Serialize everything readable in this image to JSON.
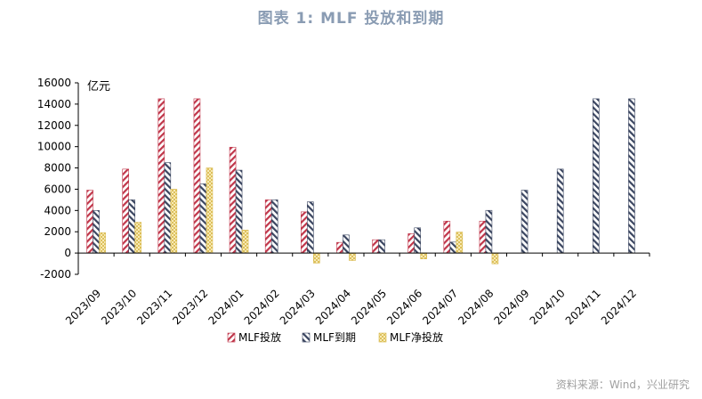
{
  "title": "图表 1:  MLF 投放和到期",
  "source": "资料来源：Wind，兴业研究",
  "chart_data": {
    "type": "bar",
    "unit_label": "亿元",
    "categories": [
      "2023/09",
      "2023/10",
      "2023/11",
      "2023/12",
      "2024/01",
      "2024/02",
      "2024/03",
      "2024/04",
      "2024/05",
      "2024/06",
      "2024/07",
      "2024/08",
      "2024/09",
      "2024/10",
      "2024/11",
      "2024/12"
    ],
    "series": [
      {
        "name": "MLF投放",
        "color": "#c0364a",
        "pattern": "diagonal-red",
        "values": [
          5910,
          7890,
          14500,
          14500,
          9950,
          5000,
          3870,
          1000,
          1250,
          1820,
          3000,
          3000,
          null,
          null,
          null,
          null
        ]
      },
      {
        "name": "MLF到期",
        "color": "#3a4560",
        "pattern": "diagonal-navy",
        "values": [
          4000,
          5000,
          8500,
          6500,
          7790,
          5000,
          4810,
          1700,
          1250,
          2370,
          1030,
          4010,
          5910,
          7890,
          14500,
          14500
        ]
      },
      {
        "name": "MLF净投放",
        "color": "#d8b84a",
        "pattern": "crosshatch-yellow",
        "values": [
          1910,
          2890,
          6000,
          8000,
          2160,
          0,
          -940,
          -700,
          0,
          -550,
          1970,
          -1010,
          null,
          null,
          null,
          null
        ]
      }
    ],
    "ylim": [
      -2000,
      16000
    ],
    "yticks": [
      -2000,
      0,
      2000,
      4000,
      6000,
      8000,
      10000,
      12000,
      14000,
      16000
    ],
    "legend_position": "bottom"
  }
}
